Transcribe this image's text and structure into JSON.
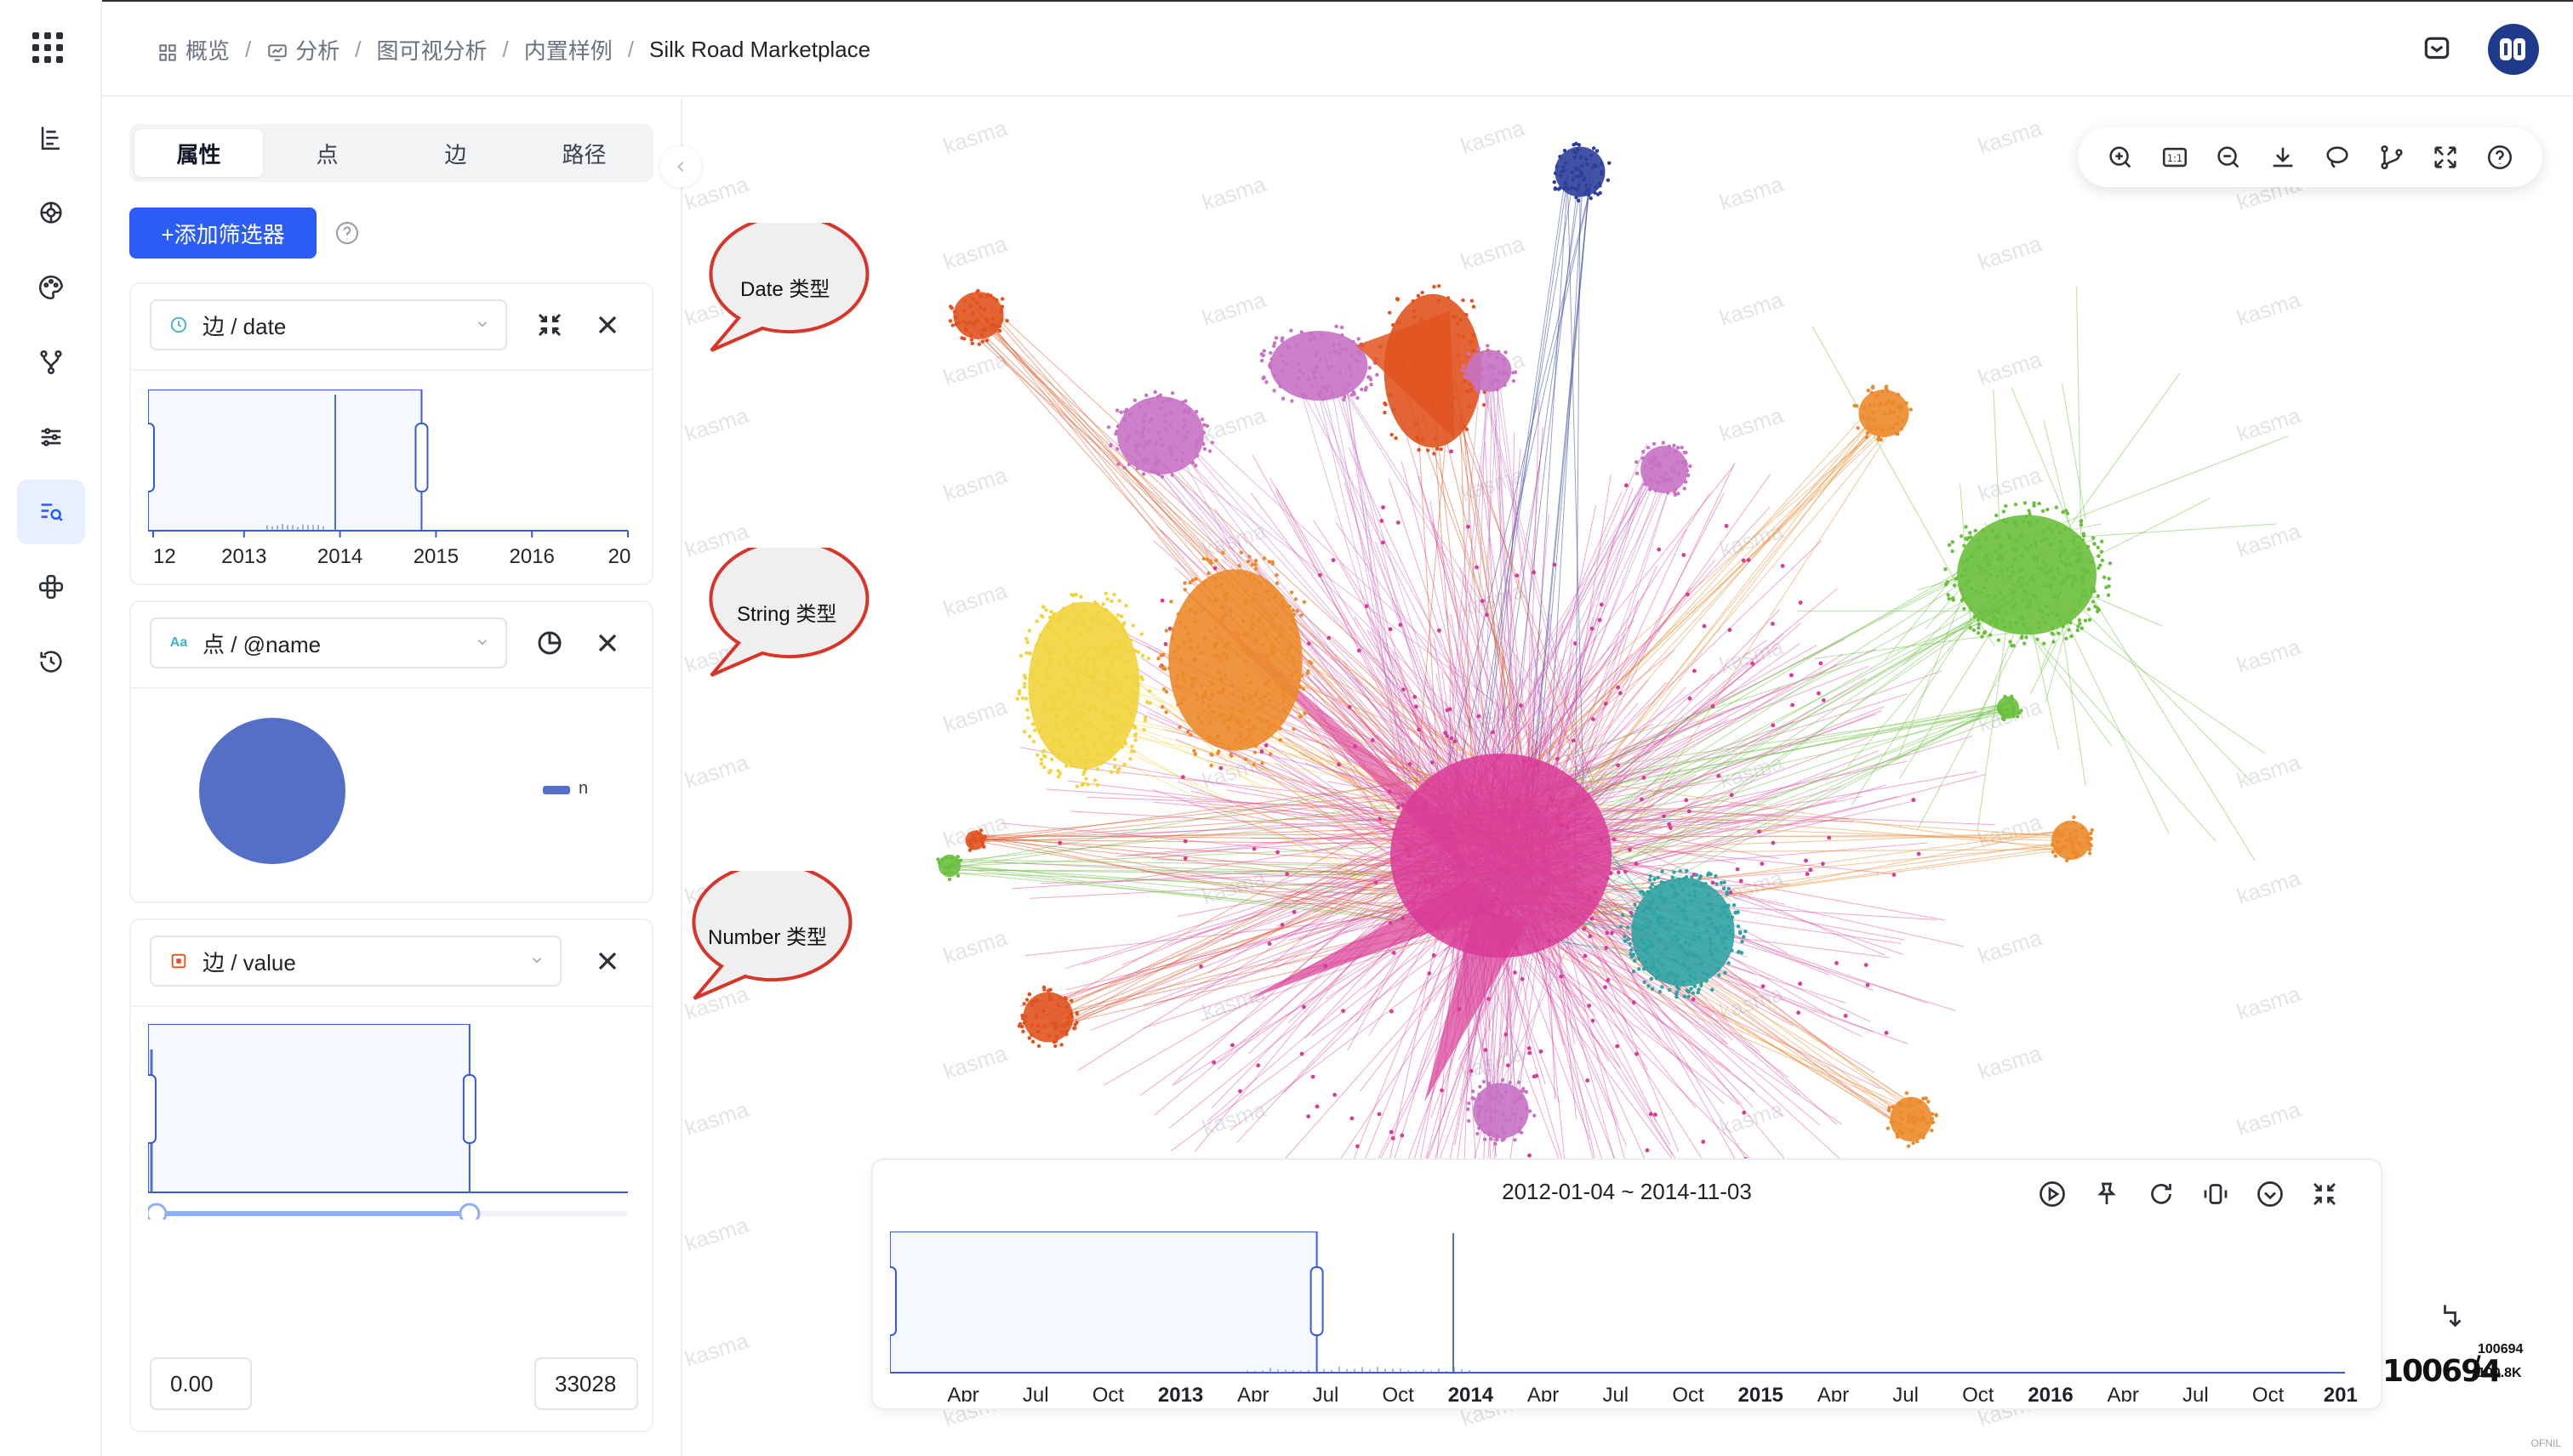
{
  "breadcrumb": {
    "items": [
      {
        "label": "概览",
        "icon": "grid-icon"
      },
      {
        "label": "分析",
        "icon": "analysis-icon"
      },
      {
        "label": "图可视分析"
      },
      {
        "label": "内置样例"
      },
      {
        "label": "Silk Road Marketplace"
      }
    ]
  },
  "rail": {
    "items": [
      {
        "icon": "data-icon"
      },
      {
        "icon": "layout-icon"
      },
      {
        "icon": "style-icon"
      },
      {
        "icon": "branch-icon"
      },
      {
        "icon": "settings-sliders-icon"
      },
      {
        "icon": "filter-search-icon",
        "active": true
      },
      {
        "icon": "algorithm-icon"
      },
      {
        "icon": "history-icon"
      }
    ]
  },
  "panel": {
    "tabs": [
      "属性",
      "点",
      "边",
      "路径"
    ],
    "active_tab": 0,
    "add_filter_label": "+添加筛选器",
    "filters": [
      {
        "type_icon": "clock-icon",
        "label": "边 / date",
        "axis_ticks": [
          "12",
          "2013",
          "2014",
          "2015",
          "2016",
          "20"
        ],
        "window": [
          0.0,
          0.57
        ]
      },
      {
        "type_icon": "text-type-icon",
        "type_text": "Aa",
        "label": "点 / @name",
        "legend": "n"
      },
      {
        "type_icon": "number-type-icon",
        "label": "边 / value",
        "window": [
          0.0,
          0.67
        ],
        "min_value": "0.00",
        "max_value": "33028"
      }
    ]
  },
  "callouts": [
    "Date 类型",
    "String 类型",
    "Number 类型"
  ],
  "watermark": "kasma",
  "toolbar": {
    "icons": [
      "zoom-in-icon",
      "actual-size-icon",
      "zoom-out-icon",
      "download-icon",
      "lasso-icon",
      "path-icon",
      "fullscreen-icon",
      "help-icon"
    ],
    "actual_size_text": "1:1"
  },
  "timebar": {
    "range_text": "2012-01-04 ~ 2014-11-03",
    "tick_labels": [
      "Apr",
      "Jul",
      "Oct",
      "2013",
      "Apr",
      "Jul",
      "Oct",
      "2014",
      "Apr",
      "Jul",
      "Oct",
      "2015",
      "Apr",
      "Jul",
      "Oct",
      "2016",
      "Apr",
      "Jul",
      "Oct",
      "201"
    ],
    "window": [
      0.0,
      0.57
    ],
    "icons": [
      "play-icon",
      "pin-icon",
      "refresh-icon",
      "compress-icon",
      "collapse-icon",
      "minimize-icon"
    ]
  },
  "counter": {
    "total": "100694",
    "top": "100694",
    "bottom": "100.8K"
  },
  "colors": {
    "accent": "#2b5cf6",
    "pink": "#d93a96",
    "green": "#6abf3d",
    "orange": "#ec8a2b",
    "yellow": "#f2d33c",
    "violet": "#c772c4",
    "teal": "#2fa3a3",
    "navy": "#2e3f9a",
    "red_orange": "#e0531f",
    "pie_blue": "#5470c6"
  },
  "brand_tag": "OFNIL"
}
